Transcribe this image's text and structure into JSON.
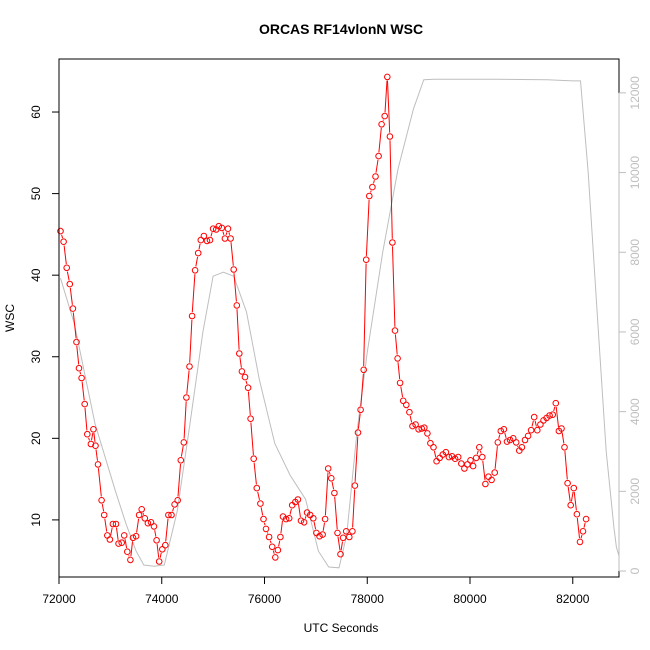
{
  "chart_data": {
    "type": "line",
    "title": "ORCAS RF14vlonN WSC",
    "xlabel": "UTC Seconds",
    "ylabel": "WSC",
    "xlim": [
      72000,
      82900
    ],
    "ylim": [
      3.0,
      66.5
    ],
    "y2lim": [
      -150,
      12850
    ],
    "x_ticks": [
      72000,
      74000,
      76000,
      78000,
      80000,
      82000
    ],
    "y_ticks": [
      10,
      20,
      30,
      40,
      50,
      60
    ],
    "y2_ticks": [
      0,
      2000,
      4000,
      6000,
      8000,
      10000,
      12000
    ],
    "grid": false,
    "legend": "none",
    "series": [
      {
        "role": "primary",
        "color": "#ff0000",
        "style": "line-with-open-circles",
        "points": [
          [
            72030,
            45.4
          ],
          [
            72090,
            44.1
          ],
          [
            72150,
            40.9
          ],
          [
            72210,
            38.9
          ],
          [
            72270,
            35.9
          ],
          [
            72340,
            31.8
          ],
          [
            72390,
            28.6
          ],
          [
            72440,
            27.4
          ],
          [
            72500,
            24.2
          ],
          [
            72550,
            20.5
          ],
          [
            72620,
            19.3
          ],
          [
            72670,
            21.1
          ],
          [
            72710,
            19.1
          ],
          [
            72760,
            16.8
          ],
          [
            72830,
            12.4
          ],
          [
            72880,
            10.6
          ],
          [
            72940,
            8.1
          ],
          [
            72990,
            7.6
          ],
          [
            73050,
            9.5
          ],
          [
            73110,
            9.5
          ],
          [
            73160,
            7.1
          ],
          [
            73220,
            7.2
          ],
          [
            73270,
            8.1
          ],
          [
            73330,
            6.1
          ],
          [
            73390,
            5.1
          ],
          [
            73440,
            7.8
          ],
          [
            73500,
            8.0
          ],
          [
            73560,
            10.6
          ],
          [
            73610,
            11.3
          ],
          [
            73670,
            10.2
          ],
          [
            73730,
            9.6
          ],
          [
            73790,
            9.7
          ],
          [
            73850,
            9.2
          ],
          [
            73900,
            7.5
          ],
          [
            73950,
            4.9
          ],
          [
            74010,
            6.4
          ],
          [
            74070,
            6.9
          ],
          [
            74130,
            10.6
          ],
          [
            74190,
            10.6
          ],
          [
            74250,
            11.9
          ],
          [
            74310,
            12.4
          ],
          [
            74370,
            17.3
          ],
          [
            74430,
            19.5
          ],
          [
            74480,
            25.0
          ],
          [
            74540,
            28.8
          ],
          [
            74590,
            35.0
          ],
          [
            74650,
            40.6
          ],
          [
            74710,
            42.7
          ],
          [
            74760,
            44.3
          ],
          [
            74820,
            44.8
          ],
          [
            74880,
            44.2
          ],
          [
            74940,
            44.3
          ],
          [
            75000,
            45.7
          ],
          [
            75060,
            45.6
          ],
          [
            75110,
            46.0
          ],
          [
            75170,
            45.8
          ],
          [
            75230,
            44.5
          ],
          [
            75290,
            45.7
          ],
          [
            75340,
            44.5
          ],
          [
            75400,
            40.7
          ],
          [
            75460,
            36.3
          ],
          [
            75510,
            30.4
          ],
          [
            75560,
            28.2
          ],
          [
            75620,
            27.5
          ],
          [
            75680,
            26.2
          ],
          [
            75730,
            22.4
          ],
          [
            75790,
            17.5
          ],
          [
            75850,
            13.9
          ],
          [
            75920,
            12.0
          ],
          [
            75980,
            10.1
          ],
          [
            76030,
            8.9
          ],
          [
            76090,
            7.9
          ],
          [
            76150,
            6.7
          ],
          [
            76210,
            5.4
          ],
          [
            76260,
            6.3
          ],
          [
            76310,
            7.9
          ],
          [
            76360,
            10.4
          ],
          [
            76420,
            10.1
          ],
          [
            76480,
            10.2
          ],
          [
            76540,
            11.8
          ],
          [
            76600,
            12.2
          ],
          [
            76650,
            12.5
          ],
          [
            76710,
            9.9
          ],
          [
            76770,
            9.7
          ],
          [
            76830,
            10.9
          ],
          [
            76890,
            10.6
          ],
          [
            76950,
            10.2
          ],
          [
            77010,
            8.4
          ],
          [
            77070,
            8.0
          ],
          [
            77130,
            8.2
          ],
          [
            77180,
            10.1
          ],
          [
            77240,
            16.3
          ],
          [
            77300,
            15.1
          ],
          [
            77360,
            13.3
          ],
          [
            77420,
            8.4
          ],
          [
            77480,
            5.8
          ],
          [
            77530,
            7.8
          ],
          [
            77590,
            8.6
          ],
          [
            77650,
            7.9
          ],
          [
            77710,
            8.6
          ],
          [
            77760,
            14.2
          ],
          [
            77820,
            20.7
          ],
          [
            77870,
            23.5
          ],
          [
            77930,
            28.4
          ],
          [
            77980,
            41.9
          ],
          [
            78040,
            49.7
          ],
          [
            78100,
            50.8
          ],
          [
            78160,
            52.1
          ],
          [
            78220,
            54.6
          ],
          [
            78280,
            58.5
          ],
          [
            78340,
            59.5
          ],
          [
            78390,
            64.3
          ],
          [
            78440,
            57.0
          ],
          [
            78490,
            44.0
          ],
          [
            78540,
            33.2
          ],
          [
            78590,
            29.8
          ],
          [
            78640,
            26.8
          ],
          [
            78700,
            24.6
          ],
          [
            78760,
            24.1
          ],
          [
            78820,
            23.2
          ],
          [
            78880,
            21.5
          ],
          [
            78940,
            21.7
          ],
          [
            79000,
            21.1
          ],
          [
            79060,
            21.2
          ],
          [
            79110,
            21.3
          ],
          [
            79170,
            20.6
          ],
          [
            79230,
            19.4
          ],
          [
            79290,
            18.9
          ],
          [
            79350,
            17.2
          ],
          [
            79410,
            17.6
          ],
          [
            79470,
            18.0
          ],
          [
            79530,
            18.3
          ],
          [
            79590,
            17.7
          ],
          [
            79650,
            17.8
          ],
          [
            79710,
            17.5
          ],
          [
            79770,
            17.7
          ],
          [
            79830,
            16.9
          ],
          [
            79890,
            16.3
          ],
          [
            79950,
            16.8
          ],
          [
            80010,
            17.3
          ],
          [
            80060,
            16.6
          ],
          [
            80120,
            17.6
          ],
          [
            80180,
            18.9
          ],
          [
            80240,
            17.7
          ],
          [
            80300,
            14.4
          ],
          [
            80360,
            15.3
          ],
          [
            80420,
            14.9
          ],
          [
            80480,
            15.8
          ],
          [
            80540,
            19.5
          ],
          [
            80600,
            20.9
          ],
          [
            80660,
            21.1
          ],
          [
            80720,
            19.6
          ],
          [
            80780,
            19.8
          ],
          [
            80840,
            20.0
          ],
          [
            80900,
            19.5
          ],
          [
            80960,
            18.5
          ],
          [
            81010,
            18.9
          ],
          [
            81070,
            19.8
          ],
          [
            81130,
            20.3
          ],
          [
            81190,
            21.0
          ],
          [
            81250,
            22.6
          ],
          [
            81310,
            21.0
          ],
          [
            81370,
            21.7
          ],
          [
            81430,
            22.2
          ],
          [
            81490,
            22.5
          ],
          [
            81550,
            22.8
          ],
          [
            81610,
            22.9
          ],
          [
            81670,
            24.3
          ],
          [
            81730,
            20.9
          ],
          [
            81780,
            21.2
          ],
          [
            81840,
            18.9
          ],
          [
            81900,
            14.5
          ],
          [
            81960,
            11.8
          ],
          [
            82020,
            13.9
          ],
          [
            82080,
            10.7
          ],
          [
            82140,
            7.3
          ],
          [
            82200,
            8.6
          ],
          [
            82260,
            10.1
          ]
        ]
      },
      {
        "role": "secondary-axis",
        "color": "#bebebe",
        "style": "line",
        "points": [
          [
            72030,
            7350
          ],
          [
            72300,
            6200
          ],
          [
            72700,
            3700
          ],
          [
            73100,
            2000
          ],
          [
            73300,
            1200
          ],
          [
            73500,
            500
          ],
          [
            73650,
            150
          ],
          [
            73850,
            120
          ],
          [
            74050,
            150
          ],
          [
            74300,
            1500
          ],
          [
            74550,
            3700
          ],
          [
            74800,
            6000
          ],
          [
            75000,
            7400
          ],
          [
            75200,
            7500
          ],
          [
            75400,
            7400
          ],
          [
            75650,
            6500
          ],
          [
            75900,
            4800
          ],
          [
            76200,
            3200
          ],
          [
            76500,
            2400
          ],
          [
            76800,
            1800
          ],
          [
            77050,
            500
          ],
          [
            77250,
            100
          ],
          [
            77450,
            80
          ],
          [
            77600,
            900
          ],
          [
            77800,
            3500
          ],
          [
            78000,
            5500
          ],
          [
            78300,
            8000
          ],
          [
            78600,
            10100
          ],
          [
            78900,
            11600
          ],
          [
            79100,
            12330
          ],
          [
            79300,
            12340
          ],
          [
            80500,
            12340
          ],
          [
            81500,
            12330
          ],
          [
            82000,
            12300
          ],
          [
            82150,
            12300
          ],
          [
            82300,
            10000
          ],
          [
            82500,
            6000
          ],
          [
            82650,
            3000
          ],
          [
            82800,
            1100
          ],
          [
            82850,
            600
          ],
          [
            82900,
            380
          ]
        ]
      }
    ]
  }
}
